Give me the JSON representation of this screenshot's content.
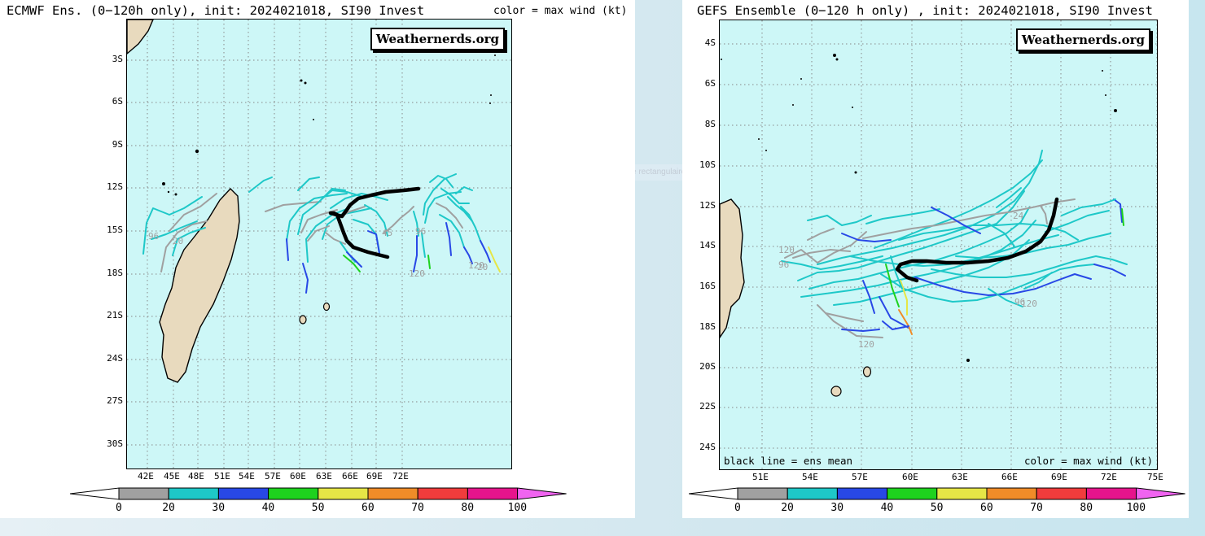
{
  "colors": {
    "ocean": "#cdf7f7",
    "land": "#e8dabe",
    "mean": "#000000",
    "bins": [
      "#a0a0a0",
      "#1ec8c8",
      "#2848e6",
      "#1ed21e",
      "#e6e646",
      "#f08c28",
      "#f03c3c",
      "#e6148c",
      "#f064f0"
    ]
  },
  "colorbar": {
    "labels": [
      "0",
      "20",
      "30",
      "40",
      "50",
      "60",
      "70",
      "80",
      "100"
    ]
  },
  "capture_label": "Capture rectangulaire",
  "ecmwf": {
    "title": "ECMWF Ens. (0−120h only), init: 2024021018, SI90 Invest",
    "color_note": "color = max wind (kt)",
    "watermark": "Weathernerds.org",
    "lat_ticks": [
      "3S",
      "6S",
      "9S",
      "12S",
      "15S",
      "18S",
      "21S",
      "24S",
      "27S",
      "30S"
    ],
    "lon_ticks": [
      "42E",
      "45E",
      "48E",
      "51E",
      "54E",
      "57E",
      "60E",
      "63E",
      "66E",
      "69E",
      "72E"
    ],
    "track_labels": [
      "96",
      "20",
      "45",
      "96",
      "120",
      "120",
      "20"
    ]
  },
  "gefs": {
    "title": "GEFS Ensemble (0−120 h only) , init: 2024021018, SI90 Invest",
    "watermark": "Weathernerds.org",
    "lat_ticks": [
      "4S",
      "6S",
      "8S",
      "10S",
      "12S",
      "14S",
      "16S",
      "18S",
      "20S",
      "22S",
      "24S"
    ],
    "lon_ticks": [
      "51E",
      "54E",
      "57E",
      "60E",
      "63E",
      "66E",
      "69E",
      "72E",
      "75E"
    ],
    "mean_note": "black line = ens mean",
    "color_note": "color = max wind (kt)",
    "track_labels": [
      "24",
      "120",
      "96",
      "96",
      "120",
      "120"
    ]
  }
}
